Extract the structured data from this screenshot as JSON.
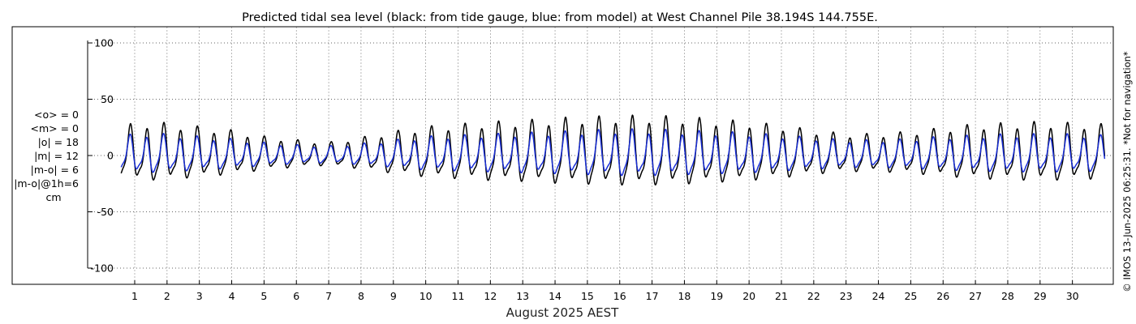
{
  "chart_data": {
    "type": "line",
    "title": "Predicted tidal sea level (black: from tide gauge, blue: from model) at West Channel Pile 38.194S 144.755E.",
    "xlabel": "August 2025 AEST",
    "ylabel": "",
    "ylim": [
      -110,
      115
    ],
    "yticks": [
      100,
      50,
      0,
      -50,
      -100
    ],
    "xlim": [
      0.58,
      31.0
    ],
    "xticks": [
      1,
      2,
      3,
      4,
      5,
      6,
      7,
      8,
      9,
      10,
      11,
      12,
      13,
      14,
      15,
      16,
      17,
      18,
      19,
      20,
      21,
      22,
      23,
      24,
      25,
      26,
      27,
      28,
      29,
      30
    ],
    "grid": true,
    "units": "cm",
    "stats": [
      "<o> = 0",
      "<m> = 0",
      "|o| = 18",
      "|m| = 12",
      "|m-o| = 6",
      "|m-o|@1h=6",
      "cm"
    ],
    "side_note": "© IMOS 13-Jun-2025 06:25:31. *Not for navigation*",
    "series": [
      {
        "name": "from tide gauge",
        "color": "#000000",
        "amplitude_by_day": [
          [
            0.6,
            22
          ],
          [
            1.0,
            28
          ],
          [
            2.0,
            27
          ],
          [
            3.0,
            24
          ],
          [
            4.0,
            21
          ],
          [
            5.0,
            16
          ],
          [
            6.0,
            13
          ],
          [
            7.0,
            11
          ],
          [
            8.0,
            15
          ],
          [
            9.0,
            20
          ],
          [
            10.0,
            24
          ],
          [
            11.0,
            26
          ],
          [
            12.0,
            28
          ],
          [
            13.0,
            29
          ],
          [
            14.0,
            31
          ],
          [
            15.0,
            32
          ],
          [
            16.0,
            33
          ],
          [
            17.0,
            33
          ],
          [
            18.0,
            32
          ],
          [
            19.0,
            30
          ],
          [
            20.0,
            28
          ],
          [
            21.0,
            25
          ],
          [
            22.0,
            21
          ],
          [
            23.0,
            18
          ],
          [
            24.0,
            18
          ],
          [
            25.0,
            20
          ],
          [
            26.0,
            23
          ],
          [
            27.0,
            26
          ],
          [
            28.0,
            27
          ],
          [
            29.0,
            28
          ],
          [
            30.0,
            27
          ],
          [
            31.0,
            26
          ]
        ],
        "phase": 2.2
      },
      {
        "name": "from model",
        "color": "#1a2fd6",
        "amplitude_by_day": [
          [
            0.6,
            15
          ],
          [
            1.0,
            19
          ],
          [
            2.0,
            18
          ],
          [
            3.0,
            16
          ],
          [
            4.0,
            14
          ],
          [
            5.0,
            11
          ],
          [
            6.0,
            9
          ],
          [
            7.0,
            8
          ],
          [
            8.0,
            10
          ],
          [
            9.0,
            13
          ],
          [
            10.0,
            16
          ],
          [
            11.0,
            17
          ],
          [
            12.0,
            18
          ],
          [
            13.0,
            19
          ],
          [
            14.0,
            20
          ],
          [
            15.0,
            21
          ],
          [
            16.0,
            22
          ],
          [
            17.0,
            22
          ],
          [
            18.0,
            21
          ],
          [
            19.0,
            20
          ],
          [
            20.0,
            19
          ],
          [
            21.0,
            17
          ],
          [
            22.0,
            15
          ],
          [
            23.0,
            13
          ],
          [
            24.0,
            13
          ],
          [
            25.0,
            14
          ],
          [
            26.0,
            16
          ],
          [
            27.0,
            17
          ],
          [
            28.0,
            18
          ],
          [
            29.0,
            18
          ],
          [
            30.0,
            18
          ],
          [
            31.0,
            17
          ]
        ],
        "phase": 2.35
      }
    ]
  }
}
